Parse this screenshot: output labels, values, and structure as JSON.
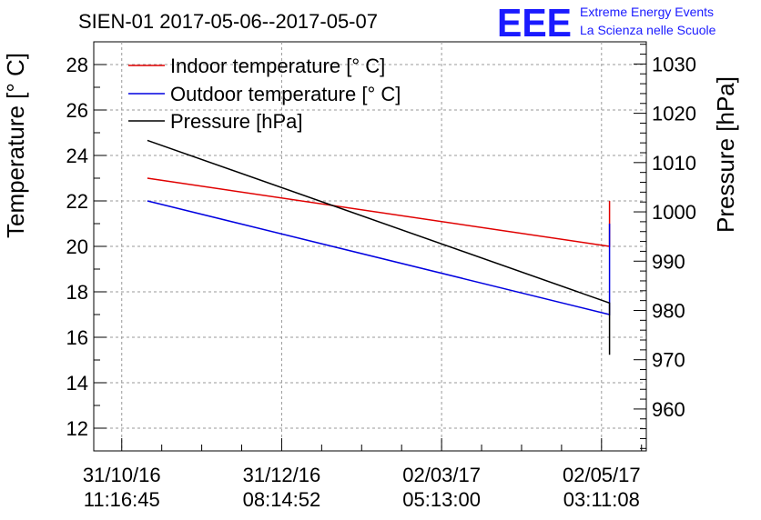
{
  "chart_data": {
    "type": "line",
    "title": "SIEN-01 2017-05-06--2017-05-07",
    "ylabel_left": "Temperature [° C]",
    "ylabel_right": "Pressure [hPa]",
    "ylim_left": [
      11,
      29
    ],
    "ylim_right": [
      951.5,
      1034.5
    ],
    "yticks_left": [
      12,
      14,
      16,
      18,
      20,
      22,
      24,
      26,
      28
    ],
    "yticks_right": [
      960,
      970,
      980,
      990,
      1000,
      1010,
      1020,
      1030
    ],
    "xlim": [
      -0.175,
      3.28
    ],
    "xticks": [
      {
        "x": 0,
        "date": "31/10/16",
        "time": "11:16:45"
      },
      {
        "x": 1,
        "date": "31/12/16",
        "time": "08:14:52"
      },
      {
        "x": 2,
        "date": "02/03/17",
        "time": "05:13:00"
      },
      {
        "x": 3,
        "date": "02/05/17",
        "time": "03:11:08"
      }
    ],
    "series": [
      {
        "name": "Indoor temperature [° C]",
        "axis": "left",
        "color": "#e00000",
        "x": [
          0.16,
          3.05,
          3.05
        ],
        "y": [
          23.0,
          20.0,
          22.0
        ]
      },
      {
        "name": "Outdoor temperature [° C]",
        "axis": "left",
        "color": "#0000e0",
        "x": [
          0.16,
          3.05,
          3.05
        ],
        "y": [
          22.0,
          17.0,
          21.0
        ]
      },
      {
        "name": "Pressure [hPa]",
        "axis": "right",
        "color": "#000000",
        "x": [
          0.16,
          3.05,
          3.05
        ],
        "y": [
          1014.5,
          981.5,
          971.0
        ]
      }
    ],
    "legend_position": "top-left",
    "grid": true
  },
  "logo": {
    "mark": "EEE",
    "line1": "Extreme Energy Events",
    "line2": "La Scienza nelle Scuole"
  }
}
